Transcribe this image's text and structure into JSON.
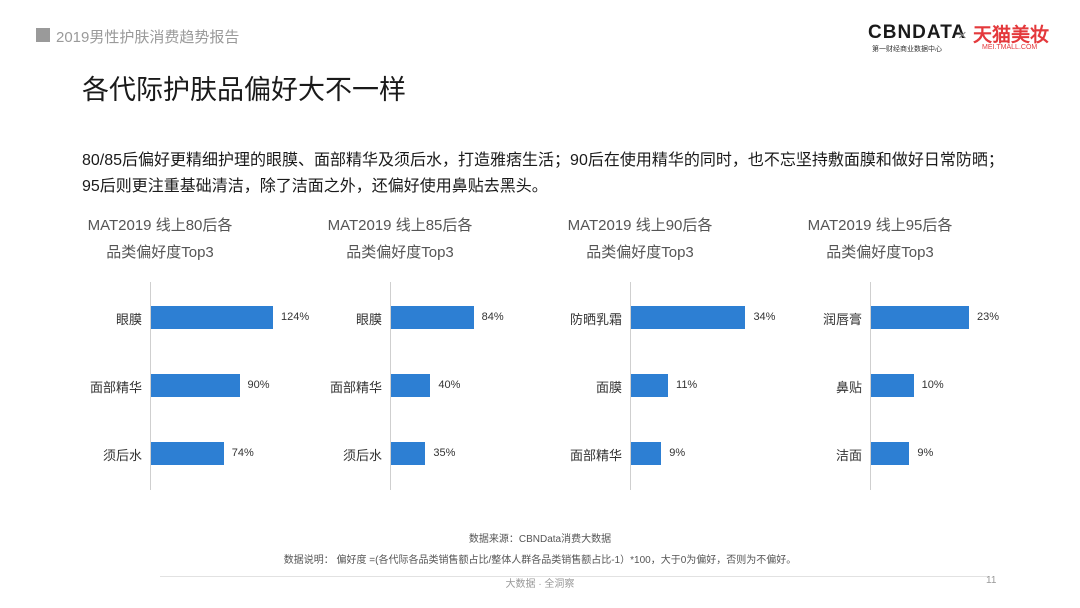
{
  "header": {
    "report_title": "2019男性护肤消费趋势报告",
    "logo_cbn": "CBNDATA",
    "logo_cbn_sub": "第一财经商业数据中心",
    "logo_sep": "×",
    "logo_tmall": "天猫美妆",
    "logo_tmall_sub": "MEI.TMALL.COM"
  },
  "page_title": "各代际护肤品偏好大不一样",
  "description": "80/85后偏好更精细护理的眼膜、面部精华及须后水，打造雅痞生活；90后在使用精华的同时，也不忘坚持敷面膜和做好日常防晒；95后则更注重基础清洁，除了洁面之外，还偏好使用鼻贴去黑头。",
  "colors": {
    "bar": "#2d7fd3",
    "axis": "#cfcfcf"
  },
  "chart_data": [
    {
      "type": "bar",
      "orientation": "horizontal",
      "title_line1": "MAT2019 线上80后各",
      "title_line2": "品类偏好度Top3",
      "categories": [
        "眼膜",
        "面部精华",
        "须后水"
      ],
      "values": [
        124,
        90,
        74
      ],
      "value_labels": [
        "124%",
        "90%",
        "74%"
      ],
      "xlim": [
        0,
        130
      ]
    },
    {
      "type": "bar",
      "orientation": "horizontal",
      "title_line1": "MAT2019 线上85后各",
      "title_line2": "品类偏好度Top3",
      "categories": [
        "眼膜",
        "面部精华",
        "须后水"
      ],
      "values": [
        84,
        40,
        35
      ],
      "value_labels": [
        "84%",
        "40%",
        "35%"
      ],
      "xlim": [
        0,
        130
      ]
    },
    {
      "type": "bar",
      "orientation": "horizontal",
      "title_line1": "MAT2019 线上90后各",
      "title_line2": "品类偏好度Top3",
      "categories": [
        "防晒乳霜",
        "面膜",
        "面部精华"
      ],
      "values": [
        34,
        11,
        9
      ],
      "value_labels": [
        "34%",
        "11%",
        "9%"
      ],
      "xlim": [
        0,
        38
      ]
    },
    {
      "type": "bar",
      "orientation": "horizontal",
      "title_line1": "MAT2019 线上95后各",
      "title_line2": "品类偏好度Top3",
      "categories": [
        "润唇膏",
        "鼻贴",
        "洁面"
      ],
      "values": [
        23,
        10,
        9
      ],
      "value_labels": [
        "23%",
        "10%",
        "9%"
      ],
      "xlim": [
        0,
        30
      ]
    }
  ],
  "source": "数据来源：CBNData消费大数据",
  "note": "数据说明：   偏好度 =(各代际各品类销售额占比/整体人群各品类销售额占比-1）*100，大于0为偏好，否则为不偏好。",
  "footer": {
    "text": "大数据 · 全洞察",
    "page_number": "11"
  }
}
